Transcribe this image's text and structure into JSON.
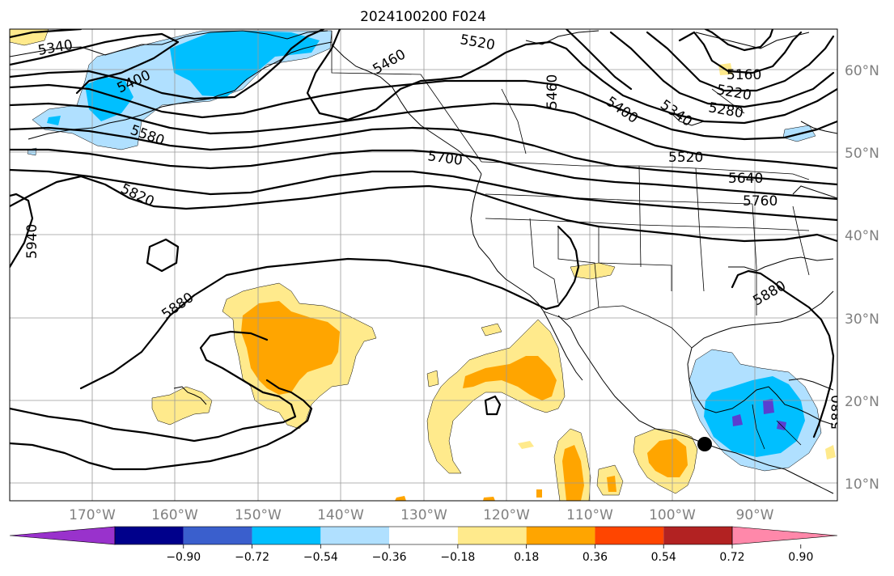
{
  "title": "2024100200 F024",
  "latitude_labels": [
    "60°N",
    "50°N",
    "40°N",
    "30°N",
    "20°N",
    "10°N"
  ],
  "longitude_labels": [
    "170°W",
    "160°W",
    "150°W",
    "140°W",
    "130°W",
    "120°W",
    "110°W",
    "100°W",
    "90°W"
  ],
  "contour_labels": {
    "c5340_a": "5340",
    "c5520_a": "5520",
    "c5460_a": "5460",
    "c5400_a": "5400",
    "c5580": "5580",
    "c5460_b": "5460",
    "c5400_b": "5400",
    "c5340_b": "5340",
    "c5160": "5160",
    "c5220": "5220",
    "c5280": "5280",
    "c5700": "5700",
    "c5520_b": "5520",
    "c5640": "5640",
    "c5760": "5760",
    "c5820": "5820",
    "c5940": "5940",
    "c5880_a": "5880",
    "c5880_b": "5880",
    "c5880_c": "5880"
  },
  "colorbar": {
    "tick_labels": [
      "−0.90",
      "−0.72",
      "−0.54",
      "−0.36",
      "−0.18",
      "0.18",
      "0.36",
      "0.54",
      "0.72",
      "0.90"
    ],
    "colors": [
      "#9932cc",
      "#00008b",
      "#3a5fcd",
      "#00bfff",
      "#b0e0ff",
      "#ffffff",
      "#ffea8c",
      "#ffa500",
      "#ff4500",
      "#b22222",
      "#ff88aa"
    ]
  },
  "shading_colors": {
    "light_blue": "#b0e0ff",
    "blue": "#00bfff",
    "purple": "#5a3fd0",
    "light_yellow": "#ffea8c",
    "orange": "#ffa500"
  },
  "marker": "storm-position-dot"
}
